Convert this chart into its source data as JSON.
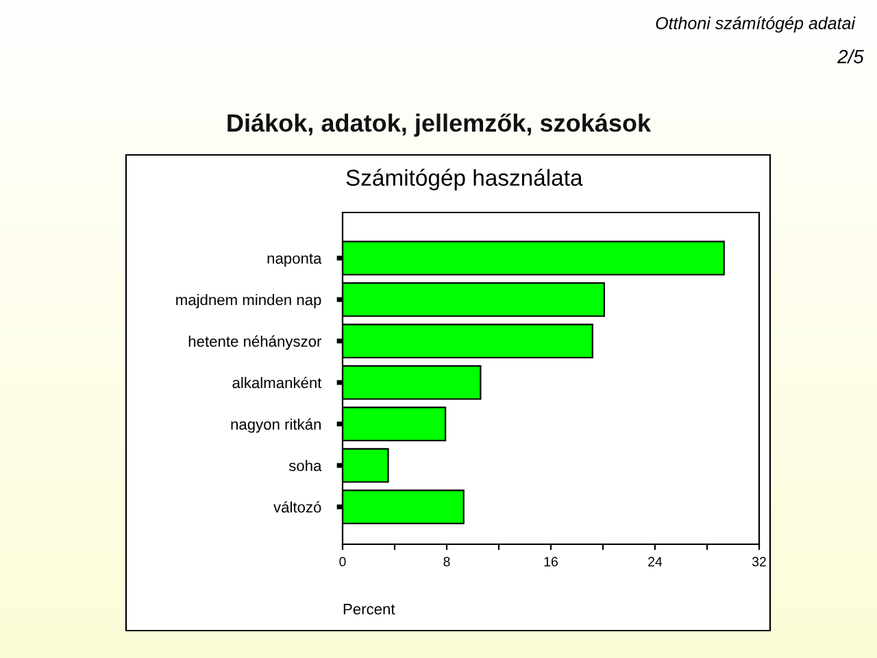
{
  "chart_data": {
    "type": "bar",
    "orientation": "horizontal",
    "title": "Számitógép használata",
    "xlabel": "Percent",
    "annotations": [
      "Otthoni számítógép adatai",
      "2/5",
      "Diákok, adatok, jellemzők, szokások"
    ],
    "categories": [
      "naponta",
      "majdnem minden nap",
      "hetente néhányszor",
      "alkalmanként",
      "nagyon ritkán",
      "soha",
      "változó"
    ],
    "values": [
      29.3,
      20.1,
      19.2,
      10.6,
      7.9,
      3.5,
      9.3
    ],
    "color": "#00ff00",
    "xlim": [
      0,
      32
    ],
    "xticks": [
      0,
      {
        "value": 4,
        "label": null
      },
      8,
      {
        "value": 12,
        "label": null
      },
      16,
      {
        "value": 20,
        "label": null
      },
      24,
      {
        "value": 28,
        "label": null
      },
      32
    ],
    "grid": false
  }
}
